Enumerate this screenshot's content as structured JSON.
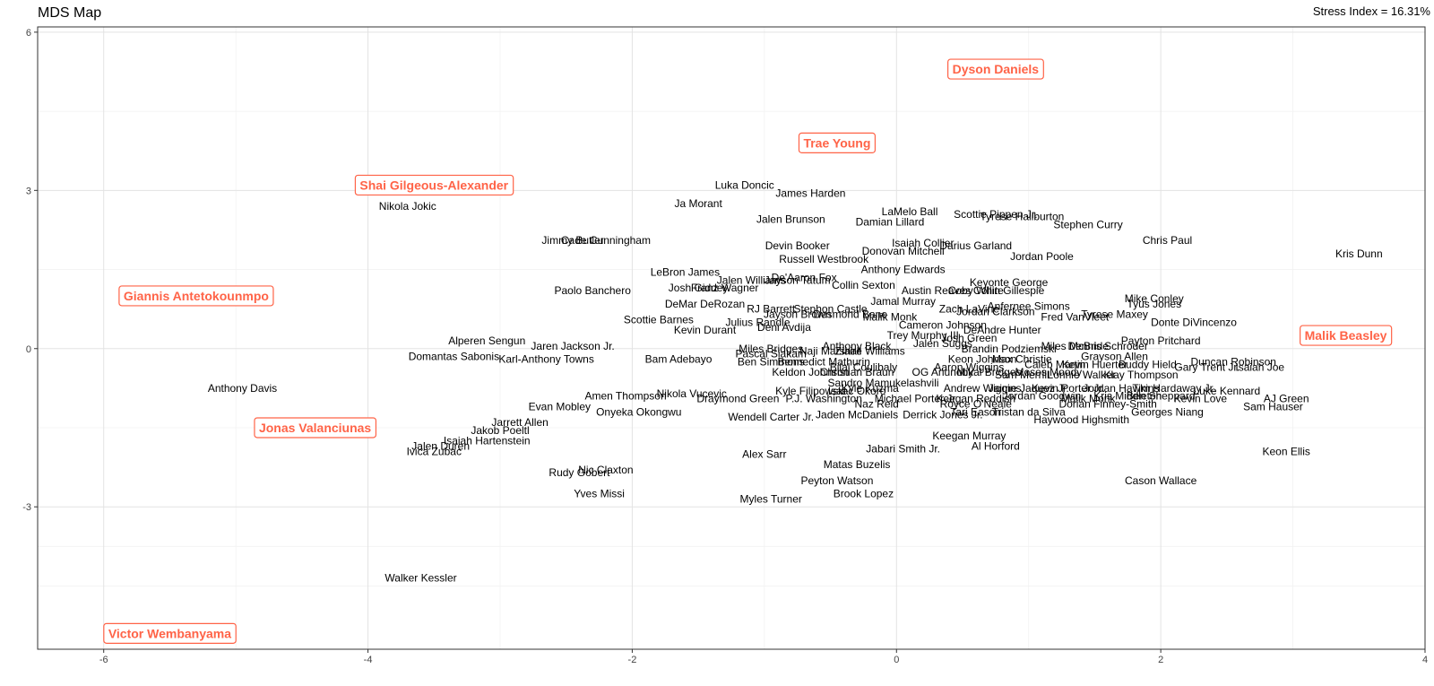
{
  "chart_data": {
    "type": "scatter",
    "title": "MDS Map",
    "stress_label": "Stress Index = 16.31%",
    "xlabel": "",
    "ylabel": "",
    "xlim": [
      -6.5,
      4
    ],
    "ylim": [
      -5.7,
      6.1
    ],
    "x_ticks": [
      -6,
      -4,
      -2,
      0,
      2,
      4
    ],
    "y_ticks": [
      -3,
      0,
      3,
      6
    ],
    "grid": true,
    "highlight_color": "#ff6347",
    "highlighted": [
      {
        "name": "Dyson Daniels",
        "x": 0.75,
        "y": 5.3
      },
      {
        "name": "Trae Young",
        "x": -0.45,
        "y": 3.9
      },
      {
        "name": "Shai Gilgeous-Alexander",
        "x": -3.5,
        "y": 3.1
      },
      {
        "name": "Giannis Antetokounmpo",
        "x": -5.3,
        "y": 1.0
      },
      {
        "name": "Malik Beasley",
        "x": 3.4,
        "y": 0.25
      },
      {
        "name": "Jonas Valanciunas",
        "x": -4.4,
        "y": -1.5
      },
      {
        "name": "Victor Wembanyama",
        "x": -5.5,
        "y": -5.4
      }
    ],
    "points": [
      {
        "name": "Nikola Jokic",
        "x": -3.7,
        "y": 2.7
      },
      {
        "name": "Luka Doncic",
        "x": -1.15,
        "y": 3.1
      },
      {
        "name": "James Harden",
        "x": -0.65,
        "y": 2.95
      },
      {
        "name": "Ja Morant",
        "x": -1.5,
        "y": 2.75
      },
      {
        "name": "LaMelo Ball",
        "x": 0.1,
        "y": 2.6
      },
      {
        "name": "Scottie Pippen Jr.",
        "x": 0.75,
        "y": 2.55
      },
      {
        "name": "Tyrese Haliburton",
        "x": 0.95,
        "y": 2.5
      },
      {
        "name": "Stephen Curry",
        "x": 1.45,
        "y": 2.35
      },
      {
        "name": "Jalen Brunson",
        "x": -0.8,
        "y": 2.45
      },
      {
        "name": "Damian Lillard",
        "x": -0.05,
        "y": 2.4
      },
      {
        "name": "Jimmy Butler",
        "x": -2.45,
        "y": 2.05
      },
      {
        "name": "Cade Cunningham",
        "x": -2.2,
        "y": 2.05
      },
      {
        "name": "Isaiah Collier",
        "x": 0.2,
        "y": 2.0
      },
      {
        "name": "Darius Garland",
        "x": 0.6,
        "y": 1.95
      },
      {
        "name": "Chris Paul",
        "x": 2.05,
        "y": 2.05
      },
      {
        "name": "Kris Dunn",
        "x": 3.5,
        "y": 1.8
      },
      {
        "name": "Devin Booker",
        "x": -0.75,
        "y": 1.95
      },
      {
        "name": "Donovan Mitchell",
        "x": 0.05,
        "y": 1.85
      },
      {
        "name": "Jordan Poole",
        "x": 1.1,
        "y": 1.75
      },
      {
        "name": "Russell Westbrook",
        "x": -0.55,
        "y": 1.7
      },
      {
        "name": "Anthony Edwards",
        "x": 0.05,
        "y": 1.5
      },
      {
        "name": "LeBron James",
        "x": -1.6,
        "y": 1.45
      },
      {
        "name": "De'Aaron Fox",
        "x": -0.7,
        "y": 1.35
      },
      {
        "name": "Jalen Williams",
        "x": -1.1,
        "y": 1.3
      },
      {
        "name": "Jayson Tatum",
        "x": -0.75,
        "y": 1.3
      },
      {
        "name": "Collin Sexton",
        "x": -0.25,
        "y": 1.2
      },
      {
        "name": "Keyonte George",
        "x": 0.85,
        "y": 1.25
      },
      {
        "name": "Austin Reaves",
        "x": 0.3,
        "y": 1.1
      },
      {
        "name": "Coby White",
        "x": 0.6,
        "y": 1.1
      },
      {
        "name": "Collin Gillespie",
        "x": 0.85,
        "y": 1.1
      },
      {
        "name": "Paolo Banchero",
        "x": -2.3,
        "y": 1.1
      },
      {
        "name": "Josh Giddey",
        "x": -1.5,
        "y": 1.15
      },
      {
        "name": "Franz Wagner",
        "x": -1.3,
        "y": 1.15
      },
      {
        "name": "Mike Conley",
        "x": 1.95,
        "y": 0.95
      },
      {
        "name": "Tyus Jones",
        "x": 1.95,
        "y": 0.85
      },
      {
        "name": "DeMar DeRozan",
        "x": -1.45,
        "y": 0.85
      },
      {
        "name": "Jamal Murray",
        "x": 0.05,
        "y": 0.9
      },
      {
        "name": "Anfernee Simons",
        "x": 1.0,
        "y": 0.8
      },
      {
        "name": "RJ Barrett",
        "x": -0.95,
        "y": 0.75
      },
      {
        "name": "Stephon Castle",
        "x": -0.5,
        "y": 0.75
      },
      {
        "name": "Zach LaVine",
        "x": 0.55,
        "y": 0.75
      },
      {
        "name": "Jayson Brown",
        "x": -0.75,
        "y": 0.65
      },
      {
        "name": "Desmond Bane",
        "x": -0.35,
        "y": 0.65
      },
      {
        "name": "Malik Monk",
        "x": -0.05,
        "y": 0.6
      },
      {
        "name": "Jordan Clarkson",
        "x": 0.75,
        "y": 0.7
      },
      {
        "name": "Fred VanVleet",
        "x": 1.35,
        "y": 0.6
      },
      {
        "name": "Tyrese Maxey",
        "x": 1.65,
        "y": 0.65
      },
      {
        "name": "Scottie Barnes",
        "x": -1.8,
        "y": 0.55
      },
      {
        "name": "Julius Randle",
        "x": -1.05,
        "y": 0.5
      },
      {
        "name": "Donte DiVincenzo",
        "x": 2.25,
        "y": 0.5
      },
      {
        "name": "Kevin Durant",
        "x": -1.45,
        "y": 0.35
      },
      {
        "name": "Deni Avdija",
        "x": -0.85,
        "y": 0.4
      },
      {
        "name": "Cameron Johnson",
        "x": 0.35,
        "y": 0.45
      },
      {
        "name": "DeAndre Hunter",
        "x": 0.8,
        "y": 0.35
      },
      {
        "name": "Trey Murphy III",
        "x": 0.2,
        "y": 0.25
      },
      {
        "name": "Josh Green",
        "x": 0.55,
        "y": 0.2
      },
      {
        "name": "Payton Pritchard",
        "x": 2.0,
        "y": 0.15
      },
      {
        "name": "Miles McBride",
        "x": 1.35,
        "y": 0.05
      },
      {
        "name": "Dennis Schroder",
        "x": 1.6,
        "y": 0.05
      },
      {
        "name": "Jalen Suggs",
        "x": 0.35,
        "y": 0.1
      },
      {
        "name": "Brandin Podziemski",
        "x": 0.85,
        "y": 0.0
      },
      {
        "name": "Alperen Sengun",
        "x": -3.1,
        "y": 0.15
      },
      {
        "name": "Jaren Jackson Jr.",
        "x": -2.45,
        "y": 0.05
      },
      {
        "name": "Miles Bridges",
        "x": -0.95,
        "y": 0.0
      },
      {
        "name": "Anthony Black",
        "x": -0.3,
        "y": 0.05
      },
      {
        "name": "Pascal Siakam",
        "x": -0.95,
        "y": -0.1
      },
      {
        "name": "Naji Marshall",
        "x": -0.5,
        "y": -0.05
      },
      {
        "name": "Ziaire Williams",
        "x": -0.2,
        "y": -0.05
      },
      {
        "name": "Grayson Allen",
        "x": 1.65,
        "y": -0.15
      },
      {
        "name": "Domantas Sabonis",
        "x": -3.35,
        "y": -0.15
      },
      {
        "name": "Karl-Anthony Towns",
        "x": -2.65,
        "y": -0.2
      },
      {
        "name": "Bam Adebayo",
        "x": -1.65,
        "y": -0.2
      },
      {
        "name": "Keon Johnson",
        "x": 0.65,
        "y": -0.2
      },
      {
        "name": "Max Christie",
        "x": 0.95,
        "y": -0.2
      },
      {
        "name": "Caleb Martin",
        "x": 1.2,
        "y": -0.3
      },
      {
        "name": "Kevin Huerter",
        "x": 1.5,
        "y": -0.3
      },
      {
        "name": "Buddy Hield",
        "x": 1.9,
        "y": -0.3
      },
      {
        "name": "Duncan Robinson",
        "x": 2.55,
        "y": -0.25
      },
      {
        "name": "Gary Trent Jr.",
        "x": 2.35,
        "y": -0.35
      },
      {
        "name": "Isaiah Joe",
        "x": 2.75,
        "y": -0.35
      },
      {
        "name": "Ben Simmons",
        "x": -0.95,
        "y": -0.25
      },
      {
        "name": "Bennedict Mathurin",
        "x": -0.55,
        "y": -0.25
      },
      {
        "name": "Bilal Coulibaly",
        "x": -0.25,
        "y": -0.35
      },
      {
        "name": "Aaron Wiggins",
        "x": 0.55,
        "y": -0.35
      },
      {
        "name": "Moses Moody",
        "x": 1.15,
        "y": -0.45
      },
      {
        "name": "Lonnie Walker",
        "x": 1.4,
        "y": -0.5
      },
      {
        "name": "Klay Thompson",
        "x": 1.85,
        "y": -0.5
      },
      {
        "name": "Keldon Johnson",
        "x": -0.65,
        "y": -0.45
      },
      {
        "name": "Christian Braun",
        "x": -0.3,
        "y": -0.45
      },
      {
        "name": "OG Anunoby",
        "x": 0.35,
        "y": -0.45
      },
      {
        "name": "Mikal Bridges",
        "x": 0.7,
        "y": -0.45
      },
      {
        "name": "Sam Merrill",
        "x": 0.95,
        "y": -0.5
      },
      {
        "name": "Anthony Davis",
        "x": -4.95,
        "y": -0.75
      },
      {
        "name": "Sandro Mamukelashvili",
        "x": -0.1,
        "y": -0.65
      },
      {
        "name": "Kyle Kuzma",
        "x": -0.2,
        "y": -0.75
      },
      {
        "name": "Andrew Wiggins",
        "x": 0.65,
        "y": -0.75
      },
      {
        "name": "Jaime Jaquez Jr.",
        "x": 1.0,
        "y": -0.75
      },
      {
        "name": "Kevin Porter Jr.",
        "x": 1.3,
        "y": -0.75
      },
      {
        "name": "Jordan Hawkins",
        "x": 1.7,
        "y": -0.75
      },
      {
        "name": "Tim Hardaway Jr.",
        "x": 2.1,
        "y": -0.75
      },
      {
        "name": "Luke Kennard",
        "x": 2.5,
        "y": -0.8
      },
      {
        "name": "Kyle Filipowski",
        "x": -0.65,
        "y": -0.8
      },
      {
        "name": "Isaac Okoro",
        "x": -0.3,
        "y": -0.8
      },
      {
        "name": "Nikola Vucevic",
        "x": -1.55,
        "y": -0.85
      },
      {
        "name": "Amen Thompson",
        "x": -2.05,
        "y": -0.9
      },
      {
        "name": "Draymond Green",
        "x": -1.2,
        "y": -0.95
      },
      {
        "name": "P.J. Washington",
        "x": -0.55,
        "y": -0.95
      },
      {
        "name": "Michael Porter Jr.",
        "x": 0.15,
        "y": -0.95
      },
      {
        "name": "Keegan Reddish",
        "x": 0.6,
        "y": -0.95
      },
      {
        "name": "Jordan Goodwin",
        "x": 1.1,
        "y": -0.9
      },
      {
        "name": "Malik Monk",
        "x": 1.45,
        "y": -0.95
      },
      {
        "name": "Kris Middleton",
        "x": 1.75,
        "y": -0.9
      },
      {
        "name": "Ben Sheppard",
        "x": 2.0,
        "y": -0.9
      },
      {
        "name": "Kevin Love",
        "x": 2.3,
        "y": -0.95
      },
      {
        "name": "AJ Green",
        "x": 2.95,
        "y": -0.95
      },
      {
        "name": "Evan Mobley",
        "x": -2.55,
        "y": -1.1
      },
      {
        "name": "Onyeka Okongwu",
        "x": -1.95,
        "y": -1.2
      },
      {
        "name": "Naz Reid",
        "x": -0.15,
        "y": -1.05
      },
      {
        "name": "Royce O'Neale",
        "x": 0.6,
        "y": -1.05
      },
      {
        "name": "Dorian Finney-Smith",
        "x": 1.6,
        "y": -1.05
      },
      {
        "name": "Sam Hauser",
        "x": 2.85,
        "y": -1.1
      },
      {
        "name": "Wendell Carter Jr.",
        "x": -0.95,
        "y": -1.3
      },
      {
        "name": "Jaden McDaniels",
        "x": -0.3,
        "y": -1.25
      },
      {
        "name": "Derrick Jones Jr.",
        "x": 0.35,
        "y": -1.25
      },
      {
        "name": "Tari Eason",
        "x": 0.6,
        "y": -1.2
      },
      {
        "name": "Tristan da Silva",
        "x": 1.0,
        "y": -1.2
      },
      {
        "name": "Haywood Highsmith",
        "x": 1.4,
        "y": -1.35
      },
      {
        "name": "Georges Niang",
        "x": 2.05,
        "y": -1.2
      },
      {
        "name": "Jarrett Allen",
        "x": -2.85,
        "y": -1.4
      },
      {
        "name": "Jakob Poeltl",
        "x": -3.0,
        "y": -1.55
      },
      {
        "name": "Keegan Murray",
        "x": 0.55,
        "y": -1.65
      },
      {
        "name": "Isaiah Hartenstein",
        "x": -3.1,
        "y": -1.75
      },
      {
        "name": "Jalen Duren",
        "x": -3.45,
        "y": -1.85
      },
      {
        "name": "Al Horford",
        "x": 0.75,
        "y": -1.85
      },
      {
        "name": "Ivica Zubac",
        "x": -3.5,
        "y": -1.95
      },
      {
        "name": "Jabari Smith Jr.",
        "x": 0.05,
        "y": -1.9
      },
      {
        "name": "Keon Ellis",
        "x": 2.95,
        "y": -1.95
      },
      {
        "name": "Alex Sarr",
        "x": -1.0,
        "y": -2.0
      },
      {
        "name": "Matas Buzelis",
        "x": -0.3,
        "y": -2.2
      },
      {
        "name": "Nic Claxton",
        "x": -2.2,
        "y": -2.3
      },
      {
        "name": "Rudy Gobert",
        "x": -2.4,
        "y": -2.35
      },
      {
        "name": "Peyton Watson",
        "x": -0.45,
        "y": -2.5
      },
      {
        "name": "Cason Wallace",
        "x": 2.0,
        "y": -2.5
      },
      {
        "name": "Brook Lopez",
        "x": -0.25,
        "y": -2.75
      },
      {
        "name": "Yves Missi",
        "x": -2.25,
        "y": -2.75
      },
      {
        "name": "Myles Turner",
        "x": -0.95,
        "y": -2.85
      },
      {
        "name": "Walker Kessler",
        "x": -3.6,
        "y": -4.35
      }
    ]
  }
}
